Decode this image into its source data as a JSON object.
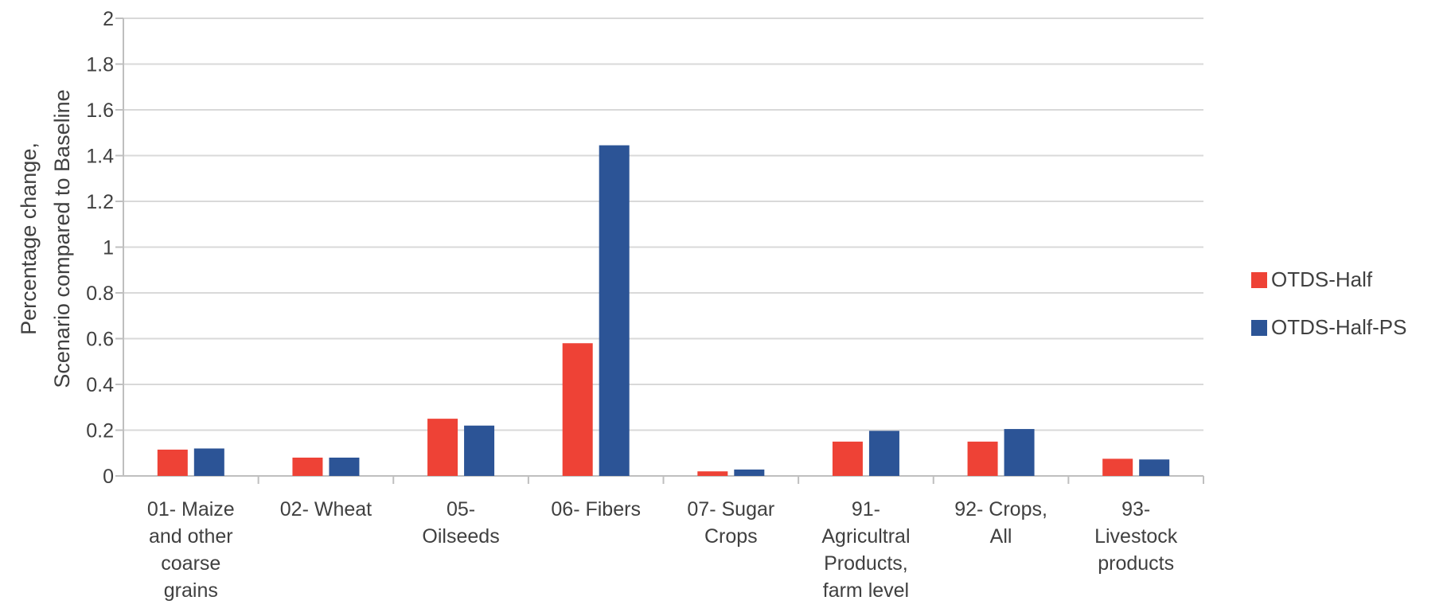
{
  "chart_data": {
    "type": "bar",
    "ylabel_lines": [
      "Percentage change,",
      "Scenario compared to Baseline"
    ],
    "ylim": [
      0,
      2
    ],
    "yticks": [
      "0",
      "0.2",
      "0.4",
      "0.6",
      "0.8",
      "1",
      "1.2",
      "1.4",
      "1.6",
      "1.8",
      "2"
    ],
    "grid": true,
    "legend_position": "right",
    "categories": [
      "01- Maize and other coarse grains",
      "02- Wheat",
      "05- Oilseeds",
      "06- Fibers",
      "07- Sugar Crops",
      "91- Agricultral Products, farm level",
      "92- Crops, All",
      "93- Livestock products"
    ],
    "category_lines": [
      [
        "01- Maize",
        "and other",
        "coarse",
        "grains"
      ],
      [
        "02- Wheat"
      ],
      [
        "05-",
        "Oilseeds"
      ],
      [
        "06- Fibers"
      ],
      [
        "07- Sugar",
        "Crops"
      ],
      [
        "91-",
        "Agricultral",
        "Products,",
        "farm level"
      ],
      [
        "92- Crops,",
        "All"
      ],
      [
        "93-",
        "Livestock",
        "products"
      ]
    ],
    "series": [
      {
        "name": "OTDS-Half",
        "color": "#ee4236",
        "values": [
          0.115,
          0.08,
          0.25,
          0.58,
          0.02,
          0.15,
          0.15,
          0.075
        ]
      },
      {
        "name": "OTDS-Half-PS",
        "color": "#2c5496",
        "values": [
          0.12,
          0.08,
          0.22,
          1.445,
          0.028,
          0.197,
          0.205,
          0.072
        ]
      }
    ]
  }
}
